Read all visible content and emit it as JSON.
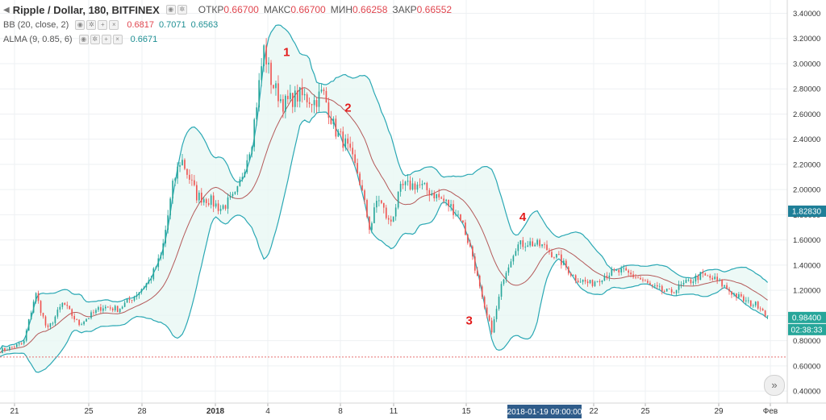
{
  "legend": {
    "symbol": "Ripple / Dollar, 180, BITFINEX",
    "open_label": "ОТКР",
    "open_value": "0.66700",
    "high_label": "МАКС",
    "high_value": "0.66700",
    "low_label": "МИН",
    "low_value": "0.66258",
    "close_label": "ЗАКР",
    "close_value": "0.66552",
    "bb_label": "BB (20, close, 2)",
    "bb_values": [
      "0.6817",
      "0.7071",
      "0.6563"
    ],
    "alma_label": "ALMA (9, 0.85, 6)",
    "alma_value": "0.6671"
  },
  "price_badges": {
    "alma": "1.82830",
    "last_price": "0.98400",
    "countdown": "02:38:33"
  },
  "crosshair_label": "2018-01-19 09:00:00",
  "scroll_icon": "double-chevron-right-icon",
  "colors": {
    "up": "#26a69a",
    "down": "#ef5350",
    "bb_band": "#2aa8b4",
    "bb_fill": "#e8f7f4",
    "bb_basis": "#b45a5a",
    "annotation": "#e31c1c",
    "hline": "#e87070"
  },
  "chart_data": {
    "type": "candlestick",
    "y_axis": {
      "range": [
        0.33,
        3.48
      ],
      "ticks": [
        "3.40000",
        "3.20000",
        "3.00000",
        "2.80000",
        "2.60000",
        "2.40000",
        "2.20000",
        "2.00000",
        "1.80000",
        "1.60000",
        "1.40000",
        "1.20000",
        "1.00000",
        "0.80000",
        "0.60000",
        "0.40000"
      ]
    },
    "x_axis": {
      "labels": [
        "21",
        "25",
        "28",
        "2018",
        "4",
        "8",
        "11",
        "15",
        "22",
        "25",
        "29",
        "Фев"
      ]
    },
    "horizontal_line": 0.67,
    "annotations": [
      {
        "label": "1",
        "x": 0.364,
        "y": 3.06
      },
      {
        "label": "2",
        "x": 0.442,
        "y": 2.62
      },
      {
        "label": "3",
        "x": 0.596,
        "y": 0.93
      },
      {
        "label": "4",
        "x": 0.664,
        "y": 1.75
      }
    ],
    "anchors": [
      [
        0.0,
        0.72
      ],
      [
        0.03,
        0.78
      ],
      [
        0.045,
        1.18
      ],
      [
        0.06,
        0.88
      ],
      [
        0.08,
        1.1
      ],
      [
        0.1,
        0.93
      ],
      [
        0.13,
        1.07
      ],
      [
        0.15,
        1.05
      ],
      [
        0.17,
        1.15
      ],
      [
        0.19,
        1.28
      ],
      [
        0.205,
        1.48
      ],
      [
        0.22,
        2.05
      ],
      [
        0.23,
        2.25
      ],
      [
        0.25,
        1.95
      ],
      [
        0.265,
        1.92
      ],
      [
        0.28,
        1.85
      ],
      [
        0.3,
        1.95
      ],
      [
        0.32,
        2.4
      ],
      [
        0.335,
        3.12
      ],
      [
        0.345,
        2.85
      ],
      [
        0.36,
        2.68
      ],
      [
        0.38,
        2.75
      ],
      [
        0.4,
        2.7
      ],
      [
        0.41,
        2.78
      ],
      [
        0.425,
        2.48
      ],
      [
        0.44,
        2.35
      ],
      [
        0.455,
        2.12
      ],
      [
        0.47,
        1.68
      ],
      [
        0.48,
        1.95
      ],
      [
        0.495,
        1.72
      ],
      [
        0.51,
        2.02
      ],
      [
        0.53,
        2.04
      ],
      [
        0.55,
        1.97
      ],
      [
        0.57,
        1.88
      ],
      [
        0.585,
        1.78
      ],
      [
        0.6,
        1.48
      ],
      [
        0.615,
        1.05
      ],
      [
        0.625,
        0.88
      ],
      [
        0.64,
        1.32
      ],
      [
        0.655,
        1.55
      ],
      [
        0.67,
        1.58
      ],
      [
        0.69,
        1.55
      ],
      [
        0.71,
        1.45
      ],
      [
        0.73,
        1.3
      ],
      [
        0.75,
        1.25
      ],
      [
        0.77,
        1.33
      ],
      [
        0.79,
        1.35
      ],
      [
        0.81,
        1.3
      ],
      [
        0.83,
        1.22
      ],
      [
        0.85,
        1.18
      ],
      [
        0.87,
        1.25
      ],
      [
        0.89,
        1.32
      ],
      [
        0.91,
        1.28
      ],
      [
        0.93,
        1.18
      ],
      [
        0.95,
        1.1
      ],
      [
        0.965,
        1.08
      ],
      [
        0.975,
        0.99
      ]
    ]
  }
}
